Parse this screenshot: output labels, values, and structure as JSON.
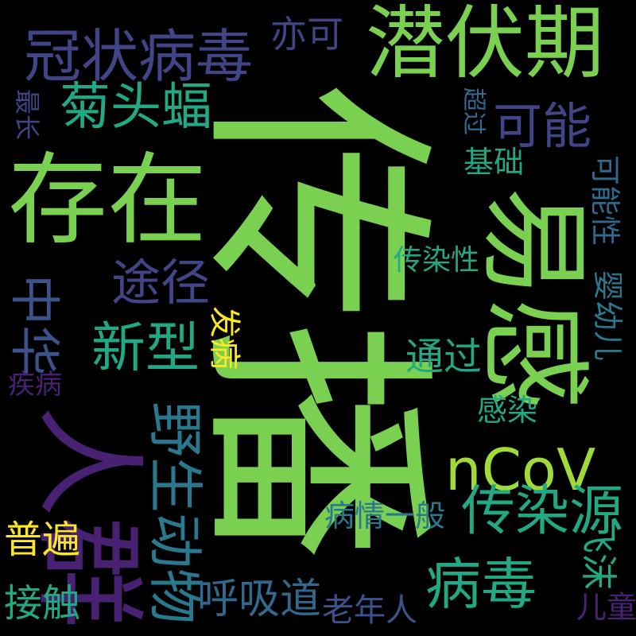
{
  "palette": {
    "background": "#000000",
    "green": "#7ad151",
    "lime": "#a0da39",
    "teal": "#22a884",
    "seaTeal": "#2a788e",
    "blue": "#31688e",
    "indigo": "#414487",
    "slate": "#3b528b",
    "purple": "#482173",
    "darkPurple": "#440154",
    "yellow": "#fde725"
  },
  "words": [
    {
      "id": "chuanbo",
      "text": "传播"
    },
    {
      "id": "yigan",
      "text": "易感"
    },
    {
      "id": "renqun",
      "text": "人群"
    },
    {
      "id": "cunzai",
      "text": "存在"
    },
    {
      "id": "qianfuqi",
      "text": "潜伏期"
    },
    {
      "id": "guanzhuang",
      "text": "冠状病毒"
    },
    {
      "id": "ncov",
      "text": "nCoV"
    },
    {
      "id": "yeshengdongwu",
      "text": "野生动物"
    },
    {
      "id": "chuanranyuan",
      "text": "传染源"
    },
    {
      "id": "bingdu",
      "text": "病毒"
    },
    {
      "id": "jutoufu",
      "text": "菊头蝠"
    },
    {
      "id": "xinxing",
      "text": "新型"
    },
    {
      "id": "zhonghua",
      "text": "中华"
    },
    {
      "id": "tujing",
      "text": "途径"
    },
    {
      "id": "keneng",
      "text": "可能"
    },
    {
      "id": "huxidao",
      "text": "呼吸道"
    },
    {
      "id": "yike",
      "text": "亦可"
    },
    {
      "id": "tongguo",
      "text": "通过"
    },
    {
      "id": "jiechu",
      "text": "接触"
    },
    {
      "id": "pubian",
      "text": "普遍"
    },
    {
      "id": "feimo",
      "text": "飞沫"
    },
    {
      "id": "laonianren",
      "text": "老年人"
    },
    {
      "id": "bingqingyiban",
      "text": "病情一般"
    },
    {
      "id": "chuanranxing",
      "text": "传染性"
    },
    {
      "id": "jichu",
      "text": "基础"
    },
    {
      "id": "ganran",
      "text": "感染"
    },
    {
      "id": "fabing",
      "text": "发病"
    },
    {
      "id": "kenengxing",
      "text": "可能性"
    },
    {
      "id": "yingyouer",
      "text": "婴幼儿"
    },
    {
      "id": "jibing",
      "text": "疾病"
    },
    {
      "id": "zuichang",
      "text": "最长"
    },
    {
      "id": "chaoguo",
      "text": "超过"
    },
    {
      "id": "ertong",
      "text": "儿童"
    }
  ]
}
